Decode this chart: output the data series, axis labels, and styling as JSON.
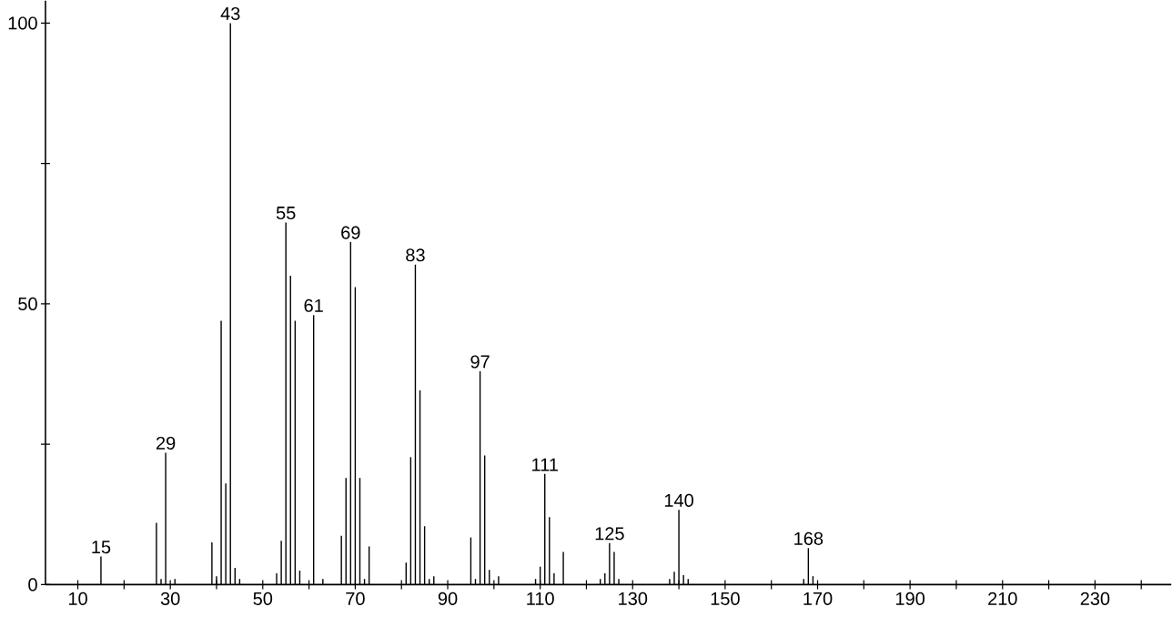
{
  "chart_data": {
    "type": "bar",
    "color": "#000000",
    "x": [
      15,
      27,
      28,
      29,
      31,
      39,
      40,
      41,
      42,
      43,
      44,
      45,
      53,
      54,
      55,
      56,
      57,
      58,
      61,
      63,
      67,
      68,
      69,
      70,
      71,
      72,
      73,
      81,
      82,
      83,
      84,
      85,
      86,
      87,
      95,
      96,
      97,
      98,
      99,
      101,
      109,
      110,
      111,
      112,
      113,
      115,
      123,
      124,
      125,
      126,
      127,
      138,
      139,
      140,
      141,
      142,
      154,
      155,
      156,
      157,
      167,
      168,
      169
    ],
    "values": [
      5,
      11,
      1,
      23.5,
      1,
      7.5,
      1.5,
      47,
      18,
      100,
      3,
      1,
      2,
      7.8,
      64.5,
      55,
      47,
      2.5,
      48,
      1,
      8.7,
      19,
      61,
      53,
      19,
      1,
      6.8,
      3.9,
      22.7,
      57,
      34.6,
      10.4,
      1,
      1.5,
      8.4,
      1,
      38,
      23,
      2.6,
      1.5,
      1,
      3.2,
      19.7,
      12,
      2,
      5.8,
      1,
      2,
      7.4,
      5.8,
      1,
      1,
      2.3,
      13.3,
      1.7,
      1,
      null,
      null,
      null,
      null,
      1,
      6.5,
      1.5
    ],
    "xlim": [
      3,
      246.5
    ],
    "ylim": [
      0,
      104
    ],
    "xticks": [
      10,
      {
        "value": 20,
        "label": null
      },
      30,
      {
        "value": 40,
        "label": null
      },
      50,
      {
        "value": 60,
        "label": null
      },
      70,
      {
        "value": 80,
        "label": null
      },
      90,
      {
        "value": 100,
        "label": null
      },
      110,
      {
        "value": 120,
        "label": null
      },
      130,
      {
        "value": 140,
        "label": null
      },
      150,
      {
        "value": 160,
        "label": null
      },
      170,
      {
        "value": 180,
        "label": null
      },
      190,
      {
        "value": 200,
        "label": null
      },
      210,
      {
        "value": 220,
        "label": null
      },
      230,
      {
        "value": 240,
        "label": null
      }
    ],
    "yticks": [
      0,
      {
        "value": 25,
        "label": null
      },
      50,
      {
        "value": 75,
        "label": null
      },
      100
    ],
    "annotations": [
      {
        "text": "15",
        "x": 15,
        "y": 5
      },
      {
        "text": "29",
        "x": 29,
        "y": 23.5
      },
      {
        "text": "43",
        "x": 43,
        "y": 100
      },
      {
        "text": "55",
        "x": 55,
        "y": 64.5
      },
      {
        "text": "61",
        "x": 61,
        "y": 48
      },
      {
        "text": "69",
        "x": 69,
        "y": 61
      },
      {
        "text": "83",
        "x": 83,
        "y": 57
      },
      {
        "text": "97",
        "x": 97,
        "y": 38
      },
      {
        "text": "111",
        "x": 111,
        "y": 19.7
      },
      {
        "text": "125",
        "x": 125,
        "y": 7.4
      },
      {
        "text": "140",
        "x": 140,
        "y": 13.3
      },
      {
        "text": "168",
        "x": 168,
        "y": 6.5
      }
    ]
  }
}
